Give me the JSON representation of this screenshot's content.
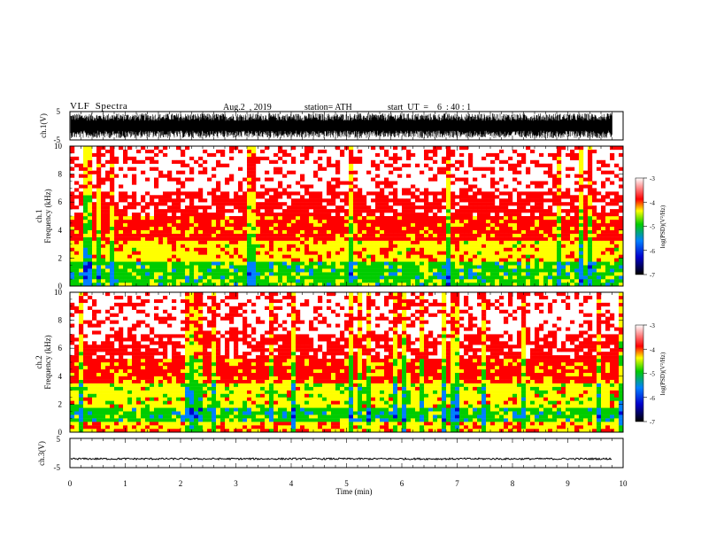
{
  "header": {
    "title": "VLF  Spectra",
    "date": "Aug.2  , 2019",
    "station": "station= ATH",
    "start": "start  UT  =    6  : 40 : 1"
  },
  "chart_data": [
    {
      "type": "line",
      "name": "ch1-waveform",
      "ylabel": "ch.1(V)",
      "ylim": [
        -5,
        5
      ],
      "yticks": [
        "5",
        "-5"
      ],
      "xlim": [
        0,
        10
      ],
      "data_xrange": [
        0,
        9.8
      ],
      "amplitude": "dense signal spanning about -4.8 to 4.8 V"
    },
    {
      "type": "heatmap",
      "name": "ch1-spectrogram",
      "ylabel_top": "ch.1",
      "ylabel": "Frequency  (kHz)",
      "ylim": [
        0,
        10
      ],
      "yticks": [
        "0",
        "2",
        "4",
        "6",
        "8",
        "10"
      ],
      "xlim": [
        0,
        10
      ],
      "colorbar": {
        "label": "log(PSD)(V²/Hz)",
        "range": [
          -7,
          -3
        ],
        "ticks": [
          "-3",
          "-4",
          "-5",
          "-6",
          "-7"
        ]
      },
      "bands": [
        {
          "range_khz": [
            0,
            0.5
          ],
          "level": -4.7
        },
        {
          "range_khz": [
            0.5,
            1.7
          ],
          "level": -4.8
        },
        {
          "range_khz": [
            1.7,
            3.3
          ],
          "level": -4.3
        },
        {
          "range_khz": [
            3.3,
            5.0
          ],
          "level": -3.9
        },
        {
          "range_khz": [
            5.0,
            6.8
          ],
          "level": -3.6
        },
        {
          "range_khz": [
            6.8,
            10.0
          ],
          "level": -3.3
        }
      ]
    },
    {
      "type": "heatmap",
      "name": "ch2-spectrogram",
      "ylabel_top": "ch.2",
      "ylabel": "Frequency  (kHz)",
      "ylim": [
        0,
        10
      ],
      "yticks": [
        "0",
        "2",
        "4",
        "6",
        "8",
        "10"
      ],
      "xlim": [
        0,
        10
      ],
      "colorbar": {
        "label": "log(PSD)(V²/Hz)",
        "range": [
          -7,
          -3
        ],
        "ticks": [
          "-3",
          "-4",
          "-5",
          "-6",
          "-7"
        ]
      },
      "bands": [
        {
          "range_khz": [
            0,
            0.8
          ],
          "level": -4.2
        },
        {
          "range_khz": [
            0.8,
            1.8
          ],
          "level": -4.8
        },
        {
          "range_khz": [
            1.8,
            3.4
          ],
          "level": -4.4
        },
        {
          "range_khz": [
            3.4,
            5.2
          ],
          "level": -3.9
        },
        {
          "range_khz": [
            5.2,
            7.0
          ],
          "level": -3.6
        },
        {
          "range_khz": [
            7.0,
            10.0
          ],
          "level": -3.3
        }
      ]
    },
    {
      "type": "line",
      "name": "ch3-waveform",
      "ylabel": "ch.3(V)",
      "ylim": [
        -5,
        5
      ],
      "yticks": [
        "5",
        "-5"
      ],
      "xlim": [
        0,
        10
      ],
      "data_xrange": [
        0,
        9.8
      ],
      "amplitude": "near-constant trace at about -2 V",
      "xlabel": "Time  (min)",
      "xticks": [
        "0",
        "1",
        "2",
        "3",
        "4",
        "5",
        "6",
        "7",
        "8",
        "9",
        "10"
      ]
    }
  ],
  "colors": {
    "axis": "#000000",
    "colormap": [
      "#000000",
      "#0000cc",
      "#0080ff",
      "#00cc00",
      "#ffff00",
      "#ff0000",
      "#ffffff"
    ]
  }
}
